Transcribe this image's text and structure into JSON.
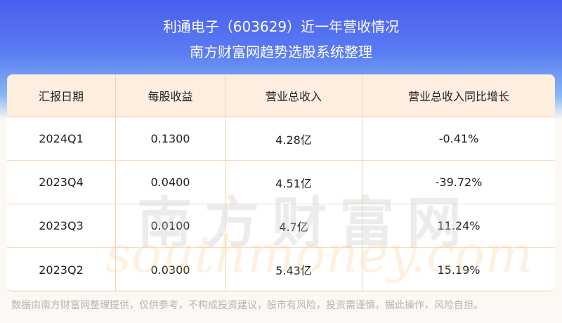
{
  "header": {
    "title": "利通电子（603629）近一年营收情况",
    "subtitle": "南方财富网趋势选股系统整理"
  },
  "table": {
    "columns": [
      "汇报日期",
      "每股收益",
      "营业总收入",
      "营业总收入同比增长"
    ],
    "rows": [
      [
        "2024Q1",
        "0.1300",
        "4.28亿",
        "-0.41%"
      ],
      [
        "2023Q4",
        "0.0400",
        "4.51亿",
        "-39.72%"
      ],
      [
        "2023Q3",
        "0.0100",
        "4.7亿",
        "11.24%"
      ],
      [
        "2023Q2",
        "0.0300",
        "5.43亿",
        "15.19%"
      ]
    ]
  },
  "watermark": {
    "cn": "南方财富网",
    "en": "southmoney.com"
  },
  "footer": "数据由南方财富网整理提供，仅供参考，不构成投资建议，股市有风险，投资需谨慎，据此操作，风险自担。",
  "colors": {
    "banner": "#4a5ef0",
    "header_bg": "#fdeee0",
    "border": "#f6c99a",
    "page_bg": "#fcf8f3"
  }
}
